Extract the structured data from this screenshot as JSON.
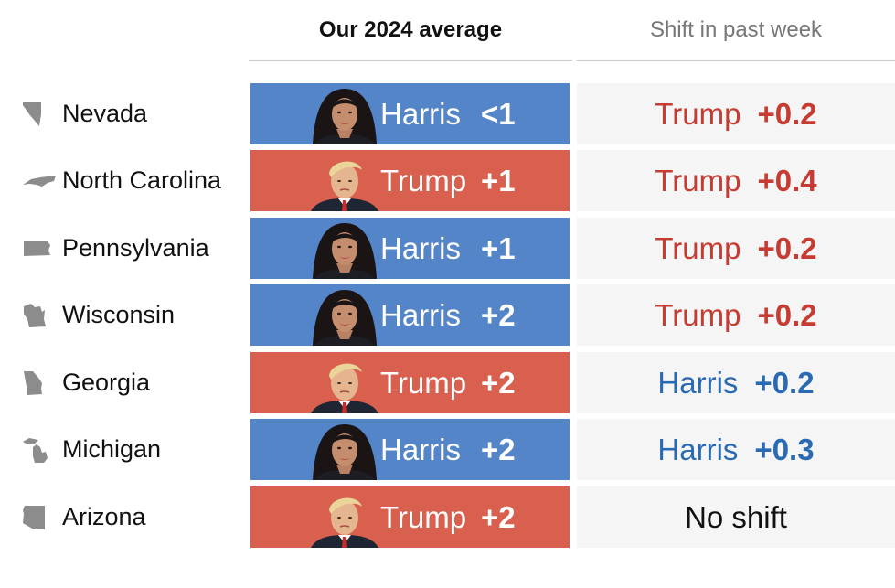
{
  "header": {
    "average_label": "Our 2024 average",
    "shift_label": "Shift in past week"
  },
  "colors": {
    "harris_bg": "#5585c9",
    "trump_bg": "#d9604e",
    "trump_text": "#c63b32",
    "harris_text": "#2a6ab3"
  },
  "rows": [
    {
      "state": "Nevada",
      "state_icon": "nevada-shape-icon",
      "average": {
        "candidate": "Harris",
        "margin": "<1"
      },
      "shift": {
        "candidate": "Trump",
        "value": "+0.2",
        "text": ""
      }
    },
    {
      "state": "North Carolina",
      "state_icon": "north-carolina-shape-icon",
      "average": {
        "candidate": "Trump",
        "margin": "+1"
      },
      "shift": {
        "candidate": "Trump",
        "value": "+0.4",
        "text": ""
      }
    },
    {
      "state": "Pennsylvania",
      "state_icon": "pennsylvania-shape-icon",
      "average": {
        "candidate": "Harris",
        "margin": "+1"
      },
      "shift": {
        "candidate": "Trump",
        "value": "+0.2",
        "text": ""
      }
    },
    {
      "state": "Wisconsin",
      "state_icon": "wisconsin-shape-icon",
      "average": {
        "candidate": "Harris",
        "margin": "+2"
      },
      "shift": {
        "candidate": "Trump",
        "value": "+0.2",
        "text": ""
      }
    },
    {
      "state": "Georgia",
      "state_icon": "georgia-shape-icon",
      "average": {
        "candidate": "Trump",
        "margin": "+2"
      },
      "shift": {
        "candidate": "Harris",
        "value": "+0.2",
        "text": ""
      }
    },
    {
      "state": "Michigan",
      "state_icon": "michigan-shape-icon",
      "average": {
        "candidate": "Harris",
        "margin": "+2"
      },
      "shift": {
        "candidate": "Harris",
        "value": "+0.3",
        "text": ""
      }
    },
    {
      "state": "Arizona",
      "state_icon": "arizona-shape-icon",
      "average": {
        "candidate": "Trump",
        "margin": "+2"
      },
      "shift": {
        "candidate": "",
        "value": "",
        "text": "No shift"
      }
    }
  ]
}
